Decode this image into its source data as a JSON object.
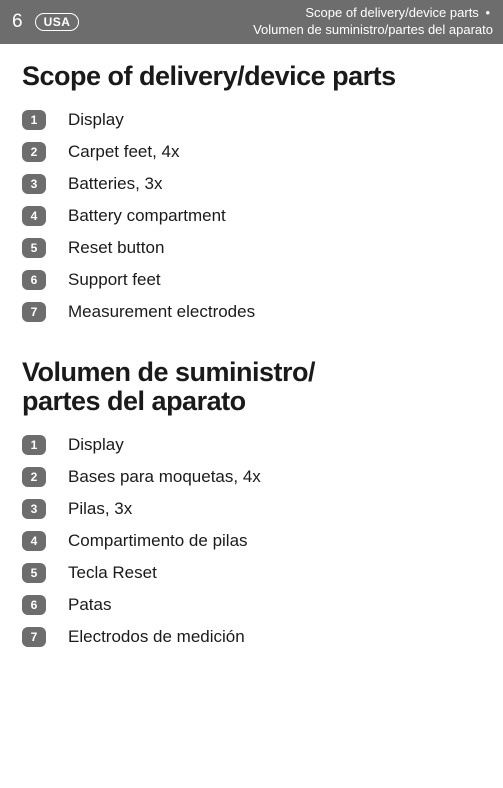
{
  "header": {
    "page_number": "6",
    "region": "USA",
    "title_line1_a": "Scope of delivery/device parts",
    "title_line1_bullet": "•",
    "title_line2": "Volumen de suministro/partes del aparato"
  },
  "section_en": {
    "heading": "Scope of delivery/device parts",
    "items": [
      {
        "num": "1",
        "label": "Display"
      },
      {
        "num": "2",
        "label": "Carpet feet, 4x"
      },
      {
        "num": "3",
        "label": "Batteries, 3x"
      },
      {
        "num": "4",
        "label": "Battery compartment"
      },
      {
        "num": "5",
        "label": "Reset button"
      },
      {
        "num": "6",
        "label": "Support feet"
      },
      {
        "num": "7",
        "label": "Measurement electrodes"
      }
    ]
  },
  "section_es": {
    "heading": "Volumen de suministro/\npartes del aparato",
    "items": [
      {
        "num": "1",
        "label": "Display"
      },
      {
        "num": "2",
        "label": "Bases para moquetas, 4x"
      },
      {
        "num": "3",
        "label": "Pilas, 3x"
      },
      {
        "num": "4",
        "label": "Compartimento de pilas"
      },
      {
        "num": "5",
        "label": "Tecla Reset"
      },
      {
        "num": "6",
        "label": "Patas"
      },
      {
        "num": "7",
        "label": "Electrodos de medición"
      }
    ]
  },
  "styling": {
    "header_bg": "#6d6d6d",
    "header_text": "#ffffff",
    "badge_bg": "#6d6d6d",
    "badge_text": "#ffffff",
    "body_text": "#1a1a1a",
    "page_bg": "#ffffff",
    "heading_fontsize": 27,
    "item_fontsize": 17,
    "header_title_fontsize": 13
  }
}
